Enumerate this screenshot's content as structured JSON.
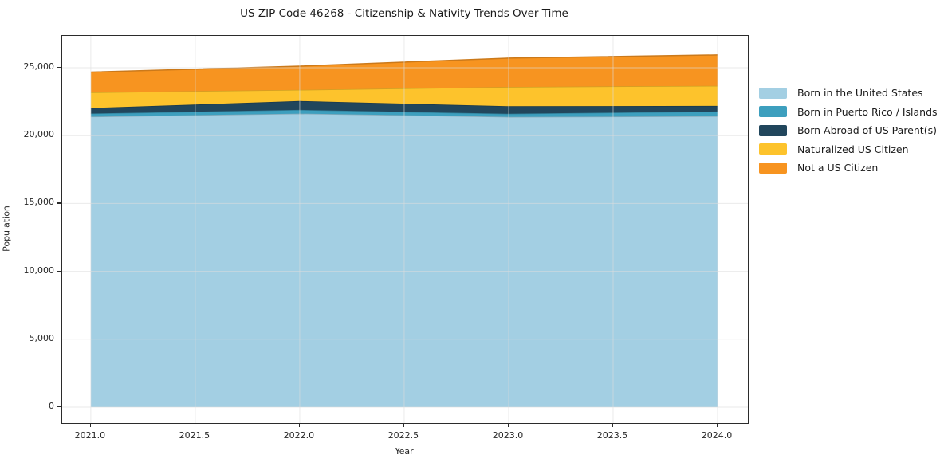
{
  "chart_data": {
    "type": "area",
    "stacked": true,
    "title": "US ZIP Code 46268 - Citizenship & Nativity Trends Over Time",
    "xlabel": "Year",
    "ylabel": "Population",
    "x": [
      2021,
      2022,
      2023,
      2024
    ],
    "series": [
      {
        "name": "Born in the United States",
        "color": "#a3cfe3",
        "values": [
          21400,
          21620,
          21380,
          21430
        ]
      },
      {
        "name": "Born in Puerto Rico / Islands",
        "color": "#3d9fbe",
        "values": [
          230,
          280,
          230,
          350
        ]
      },
      {
        "name": "Born Abroad of US Parent(s)",
        "color": "#21465c",
        "values": [
          400,
          650,
          560,
          410
        ]
      },
      {
        "name": "Naturalized US Citizen",
        "color": "#fdc32c",
        "values": [
          1150,
          820,
          1420,
          1480
        ]
      },
      {
        "name": "Not a US Citizen",
        "color": "#f79420",
        "values": [
          1500,
          1750,
          2120,
          2280
        ]
      }
    ],
    "stack_totals": [
      24680,
      25120,
      25710,
      25950
    ],
    "xticks": [
      2021.0,
      2021.5,
      2022.0,
      2022.5,
      2023.0,
      2023.5,
      2024.0
    ],
    "xtick_labels": [
      "2021.0",
      "2021.5",
      "2022.0",
      "2022.5",
      "2023.0",
      "2023.5",
      "2024.0"
    ],
    "yticks": [
      0,
      5000,
      10000,
      15000,
      20000,
      25000
    ],
    "ytick_labels": [
      "0",
      "5,000",
      "10,000",
      "15,000",
      "20,000",
      "25,000"
    ],
    "xlim": [
      2020.863,
      2024.145
    ],
    "ylim": [
      -1175,
      27350
    ],
    "grid": true,
    "grid_color": "rgba(220,220,220,0.6)",
    "legend_position": "outside-right-top",
    "spine_color": "#2b2b2b",
    "background_color": "#ffffff"
  }
}
